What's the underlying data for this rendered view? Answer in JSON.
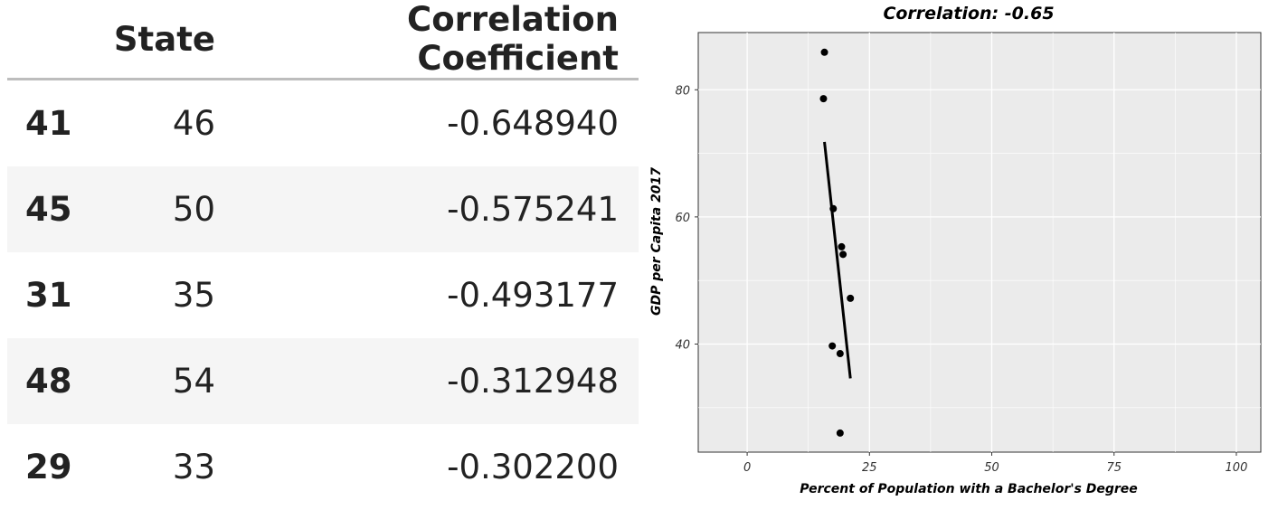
{
  "table": {
    "columns": [
      "",
      "State",
      "Correlation Coefficient"
    ],
    "rows": [
      {
        "index": "41",
        "state": "46",
        "corr": "-0.648940"
      },
      {
        "index": "45",
        "state": "50",
        "corr": "-0.575241"
      },
      {
        "index": "31",
        "state": "35",
        "corr": "-0.493177"
      },
      {
        "index": "48",
        "state": "54",
        "corr": "-0.312948"
      },
      {
        "index": "29",
        "state": "33",
        "corr": "-0.302200"
      }
    ]
  },
  "chart_data": {
    "type": "scatter",
    "title": "Correlation: -0.65",
    "xlabel": "Percent of Population with a Bachelor's Degree",
    "ylabel": "GDP per Capita 2017",
    "xlim": [
      -10,
      105
    ],
    "ylim": [
      23,
      89
    ],
    "xticks": [
      0,
      25,
      50,
      75,
      100
    ],
    "yticks": [
      40,
      60,
      80
    ],
    "grid": true,
    "points": [
      {
        "x": 15.8,
        "y": 85.9
      },
      {
        "x": 15.6,
        "y": 78.6
      },
      {
        "x": 17.6,
        "y": 61.3
      },
      {
        "x": 19.3,
        "y": 55.3
      },
      {
        "x": 19.6,
        "y": 54.1
      },
      {
        "x": 21.1,
        "y": 47.2
      },
      {
        "x": 17.4,
        "y": 39.7
      },
      {
        "x": 19.0,
        "y": 38.5
      },
      {
        "x": 19.0,
        "y": 26.0
      }
    ],
    "fit_line": [
      {
        "x": 15.8,
        "y": 71.8
      },
      {
        "x": 21.1,
        "y": 34.6
      }
    ],
    "colors": {
      "panel": "#ebebeb",
      "grid": "#ffffff",
      "points": "#000000"
    }
  }
}
